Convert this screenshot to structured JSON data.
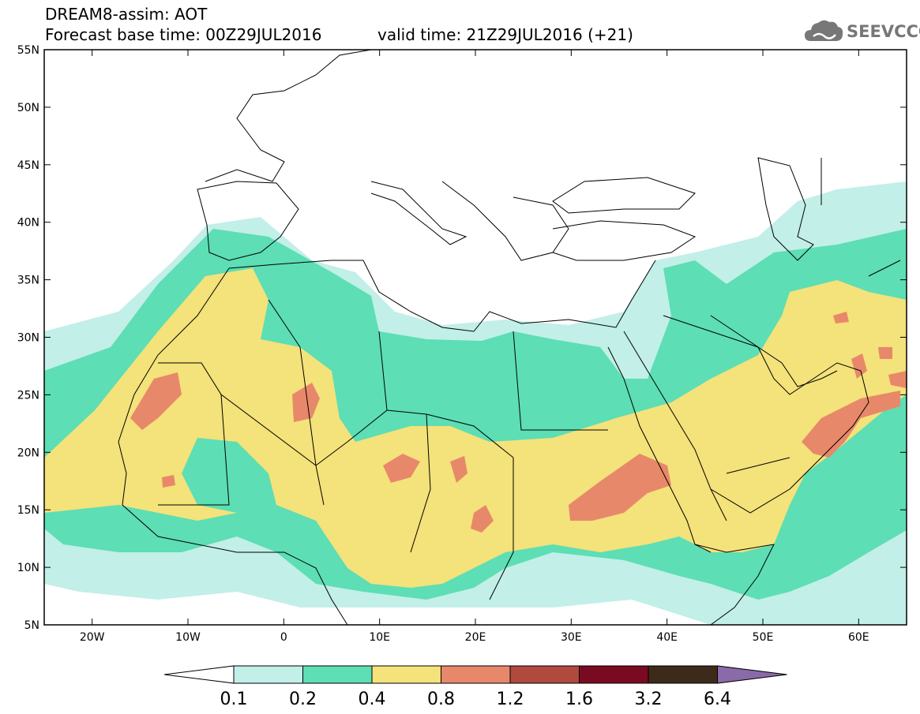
{
  "header": {
    "line1": "DREAM8-assim: AOT",
    "line2": "Forecast base time: 00Z29JUL2016",
    "line3": "valid time: 21Z29JUL2016 (+21)"
  },
  "logo": {
    "text": "SEEVCCC",
    "icon": "cloud-icon"
  },
  "map": {
    "lon_range": [
      -25,
      65
    ],
    "lat_range": [
      5,
      55
    ],
    "lat_ticks": [
      {
        "value": 55,
        "label": "55N"
      },
      {
        "value": 50,
        "label": "50N"
      },
      {
        "value": 45,
        "label": "45N"
      },
      {
        "value": 40,
        "label": "40N"
      },
      {
        "value": 35,
        "label": "35N"
      },
      {
        "value": 30,
        "label": "30N"
      },
      {
        "value": 25,
        "label": "25N"
      },
      {
        "value": 20,
        "label": "20N"
      },
      {
        "value": 15,
        "label": "15N"
      },
      {
        "value": 10,
        "label": "10N"
      },
      {
        "value": 5,
        "label": "5N"
      }
    ],
    "lon_ticks": [
      {
        "value": -20,
        "label": "20W"
      },
      {
        "value": -10,
        "label": "10W"
      },
      {
        "value": 0,
        "label": "0"
      },
      {
        "value": 10,
        "label": "10E"
      },
      {
        "value": 20,
        "label": "20E"
      },
      {
        "value": 30,
        "label": "30E"
      },
      {
        "value": 40,
        "label": "40E"
      },
      {
        "value": 50,
        "label": "50E"
      },
      {
        "value": 60,
        "label": "60E"
      }
    ]
  },
  "colorbar": {
    "labels": [
      "0.1",
      "0.2",
      "0.4",
      "0.8",
      "1.2",
      "1.6",
      "3.2",
      "6.4"
    ],
    "colors": [
      "#ffffff",
      "#c2efe8",
      "#5ddeb4",
      "#f4e27a",
      "#e8886a",
      "#b04a3e",
      "#7a0a22",
      "#3e2a1a",
      "#8a6aa8"
    ],
    "level_colors": {
      "c1": "#c2efe8",
      "c2": "#5ddeb4",
      "c3": "#f4e27a",
      "c4": "#e8886a"
    }
  }
}
